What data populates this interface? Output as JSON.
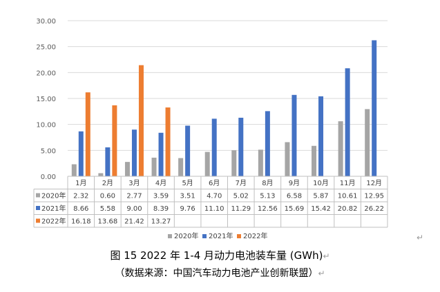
{
  "chart_data": {
    "type": "bar",
    "categories": [
      "1月",
      "2月",
      "3月",
      "4月",
      "5月",
      "6月",
      "7月",
      "8月",
      "9月",
      "10月",
      "11月",
      "12月"
    ],
    "series": [
      {
        "name": "2020年",
        "color": "#a5a5a5",
        "values": [
          2.32,
          0.6,
          2.77,
          3.59,
          3.51,
          4.7,
          5.02,
          5.13,
          6.58,
          5.87,
          10.61,
          12.95
        ],
        "labels": [
          "2.32",
          "0.60",
          "2.77",
          "3.59",
          "3.51",
          "4.70",
          "5.02",
          "5.13",
          "6.58",
          "5.87",
          "10.61",
          "12.95"
        ]
      },
      {
        "name": "2021年",
        "color": "#4472c4",
        "values": [
          8.66,
          5.58,
          9.0,
          8.39,
          9.76,
          11.1,
          11.29,
          12.56,
          15.69,
          15.42,
          20.82,
          26.22
        ],
        "labels": [
          "8.66",
          "5.58",
          "9.00",
          "8.39",
          "9.76",
          "11.10",
          "11.29",
          "12.56",
          "15.69",
          "15.42",
          "20.82",
          "26.22"
        ]
      },
      {
        "name": "2022年",
        "color": "#ed7d31",
        "values": [
          16.18,
          13.68,
          21.42,
          13.27,
          null,
          null,
          null,
          null,
          null,
          null,
          null,
          null
        ],
        "labels": [
          "16.18",
          "13.68",
          "21.42",
          "13.27",
          "",
          "",
          "",
          "",
          "",
          "",
          "",
          ""
        ]
      }
    ],
    "ylim": [
      0,
      30
    ],
    "yticks": [
      0,
      5,
      10,
      15,
      20,
      25,
      30
    ],
    "ytick_labels": [
      "0.00",
      "5.00",
      "10.00",
      "15.00",
      "20.00",
      "25.00",
      "30.00"
    ],
    "legend_position": "bottom",
    "data_table": true
  },
  "caption": {
    "title": "图 15   2022 年 1-4 月动力电池装车量 (GWh)",
    "source": "（数据来源：中国汽车动力电池产业创新联盟）"
  },
  "marks": {
    "para": "↵"
  }
}
